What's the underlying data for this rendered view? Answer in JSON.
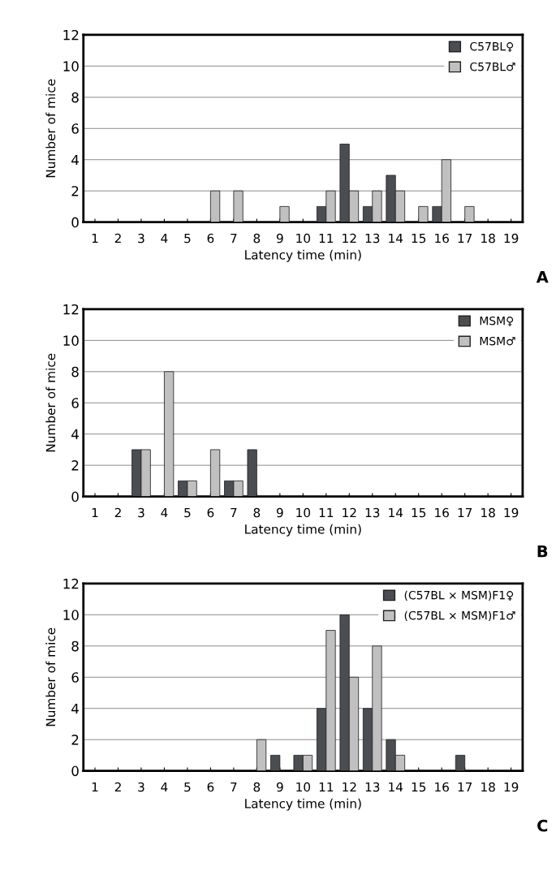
{
  "chart_data": [
    {
      "type": "bar",
      "xlabel": "Latency time (min)",
      "ylabel": "Number of mice",
      "annotations": [
        "A"
      ],
      "categories": [
        "1",
        "2",
        "3",
        "4",
        "5",
        "6",
        "7",
        "8",
        "9",
        "10",
        "11",
        "12",
        "13",
        "14",
        "15",
        "16",
        "17",
        "18",
        "19"
      ],
      "series": [
        {
          "name": "C57BL♀",
          "color": "#4a4d52",
          "values": [
            0,
            0,
            0,
            0,
            0,
            0,
            0,
            0,
            0,
            0,
            1,
            5,
            1,
            3,
            0,
            1,
            0,
            0,
            0
          ]
        },
        {
          "name": "C57BL♂",
          "color": "#c0c0c0",
          "values": [
            0,
            0,
            0,
            0,
            0,
            2,
            2,
            0,
            1,
            0,
            2,
            2,
            2,
            2,
            1,
            4,
            1,
            0,
            0
          ]
        }
      ],
      "ylim": [
        0,
        12
      ],
      "yticks": [
        0,
        2,
        4,
        6,
        8,
        10,
        12
      ],
      "grid": "y",
      "legend": "top right"
    },
    {
      "type": "bar",
      "xlabel": "Latency time (min)",
      "ylabel": "Number of mice",
      "annotations": [
        "B"
      ],
      "categories": [
        "1",
        "2",
        "3",
        "4",
        "5",
        "6",
        "7",
        "8",
        "9",
        "10",
        "11",
        "12",
        "13",
        "14",
        "15",
        "16",
        "17",
        "18",
        "19"
      ],
      "series": [
        {
          "name": "MSM♀",
          "color": "#4a4d52",
          "values": [
            0,
            0,
            3,
            0,
            1,
            0,
            1,
            3,
            0,
            0,
            0,
            0,
            0,
            0,
            0,
            0,
            0,
            0,
            0
          ]
        },
        {
          "name": "MSM♂",
          "color": "#c0c0c0",
          "values": [
            0,
            0,
            3,
            8,
            1,
            3,
            1,
            0,
            0,
            0,
            0,
            0,
            0,
            0,
            0,
            0,
            0,
            0,
            0
          ]
        }
      ],
      "ylim": [
        0,
        12
      ],
      "yticks": [
        0,
        2,
        4,
        6,
        8,
        10,
        12
      ],
      "grid": "y",
      "legend": "top right"
    },
    {
      "type": "bar",
      "xlabel": "Latency time (min)",
      "ylabel": "Number of mice",
      "annotations": [
        "C"
      ],
      "categories": [
        "1",
        "2",
        "3",
        "4",
        "5",
        "6",
        "7",
        "8",
        "9",
        "10",
        "11",
        "12",
        "13",
        "14",
        "15",
        "16",
        "17",
        "18",
        "19"
      ],
      "series": [
        {
          "name": "(C57BL × MSM)F1♀",
          "color": "#4a4d52",
          "values": [
            0,
            0,
            0,
            0,
            0,
            0,
            0,
            0,
            1,
            1,
            4,
            10,
            4,
            2,
            0,
            0,
            1,
            0,
            0
          ]
        },
        {
          "name": "(C57BL × MSM)F1♂",
          "color": "#c0c0c0",
          "values": [
            0,
            0,
            0,
            0,
            0,
            0,
            0,
            2,
            0,
            1,
            9,
            6,
            8,
            1,
            0,
            0,
            0,
            0,
            0
          ]
        }
      ],
      "ylim": [
        0,
        12
      ],
      "yticks": [
        0,
        2,
        4,
        6,
        8,
        10,
        12
      ],
      "grid": "y",
      "legend": "top right"
    }
  ]
}
